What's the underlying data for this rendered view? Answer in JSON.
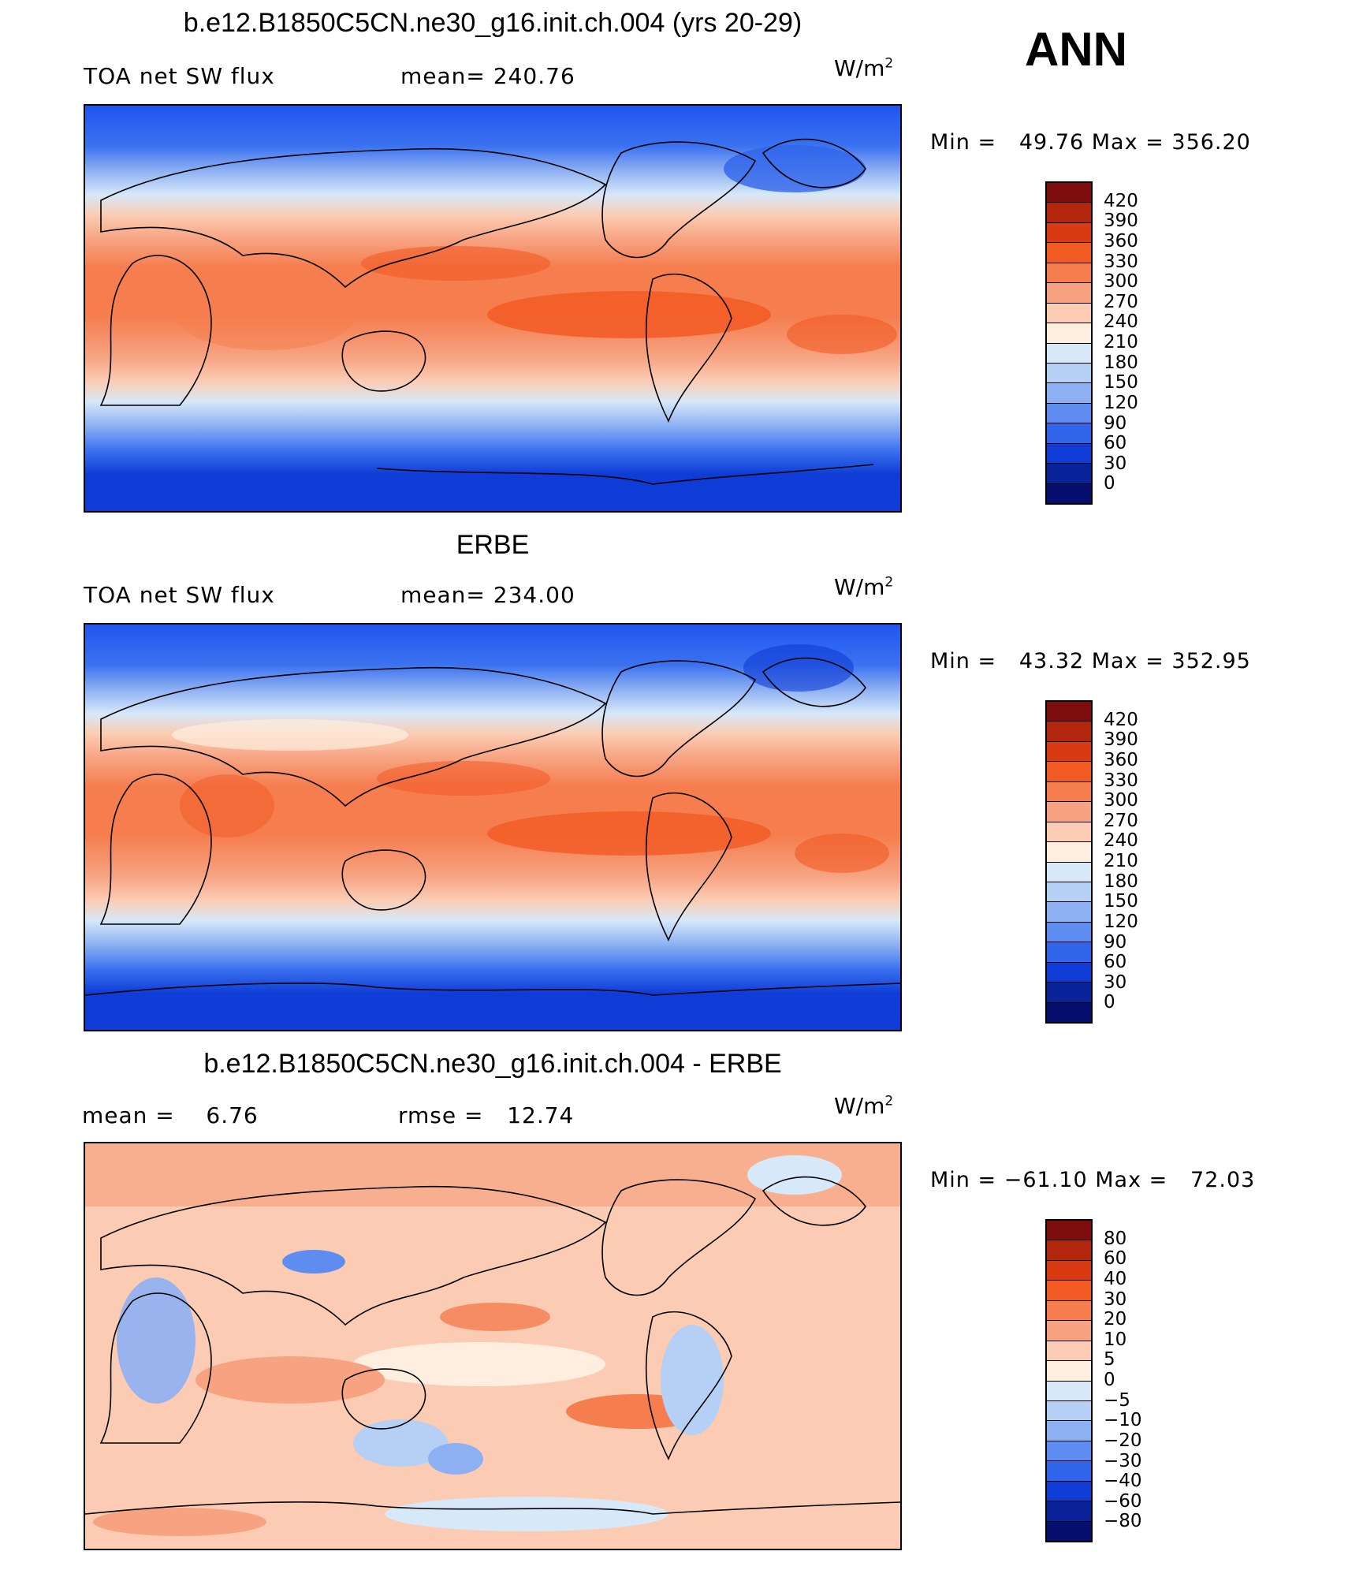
{
  "season": "ANN",
  "panels": [
    {
      "title": "b.e12.B1850C5CN.ne30_g16.init.ch.004 (yrs 20-29)",
      "left_label": "TOA net SW flux",
      "mid_label": "mean=",
      "mid_value": "240.76",
      "units": "W/m",
      "units_sup": "2",
      "min_label": "Min =",
      "min_value": "49.76",
      "max_label": "Max =",
      "max_value": "356.20",
      "colorbar_ticks": [
        "420",
        "390",
        "360",
        "330",
        "300",
        "270",
        "240",
        "210",
        "180",
        "150",
        "120",
        "90",
        "60",
        "30",
        "0"
      ],
      "colorbar_colors": [
        "#7e0e0e",
        "#b2260e",
        "#d93a12",
        "#f25a24",
        "#f57d4e",
        "#f7a382",
        "#fbccb3",
        "#fdeee0",
        "#d7e8f8",
        "#b5cff5",
        "#8db0f3",
        "#5f8cf0",
        "#2f64eb",
        "#0f3cd6",
        "#0a239b",
        "#060f6e"
      ]
    },
    {
      "title": "ERBE",
      "left_label": "TOA net SW flux",
      "mid_label": "mean=",
      "mid_value": "234.00",
      "units": "W/m",
      "units_sup": "2",
      "min_label": "Min =",
      "min_value": "43.32",
      "max_label": "Max =",
      "max_value": "352.95",
      "colorbar_ticks": [
        "420",
        "390",
        "360",
        "330",
        "300",
        "270",
        "240",
        "210",
        "180",
        "150",
        "120",
        "90",
        "60",
        "30",
        "0"
      ],
      "colorbar_colors": [
        "#7e0e0e",
        "#b2260e",
        "#d93a12",
        "#f25a24",
        "#f57d4e",
        "#f7a382",
        "#fbccb3",
        "#fdeee0",
        "#d7e8f8",
        "#b5cff5",
        "#8db0f3",
        "#5f8cf0",
        "#2f64eb",
        "#0f3cd6",
        "#0a239b",
        "#060f6e"
      ]
    },
    {
      "title": "b.e12.B1850C5CN.ne30_g16.init.ch.004 - ERBE",
      "left_label": "mean =",
      "left_value": "6.76",
      "mid_label": "rmse =",
      "mid_value": "12.74",
      "units": "W/m",
      "units_sup": "2",
      "min_label": "Min =",
      "min_value": "−61.10",
      "max_label": "Max =",
      "max_value": "72.03",
      "colorbar_ticks": [
        "80",
        "60",
        "40",
        "30",
        "20",
        "10",
        "5",
        "0",
        "−5",
        "−10",
        "−20",
        "−30",
        "−40",
        "−60",
        "−80"
      ],
      "colorbar_colors": [
        "#7e0e0e",
        "#b2260e",
        "#d93a12",
        "#f25a24",
        "#f57d4e",
        "#f7a382",
        "#fbccb3",
        "#fdeee0",
        "#d7e8f8",
        "#b5cff5",
        "#8db0f3",
        "#5f8cf0",
        "#2f64eb",
        "#0f3cd6",
        "#0a239b",
        "#060f6e"
      ]
    }
  ]
}
